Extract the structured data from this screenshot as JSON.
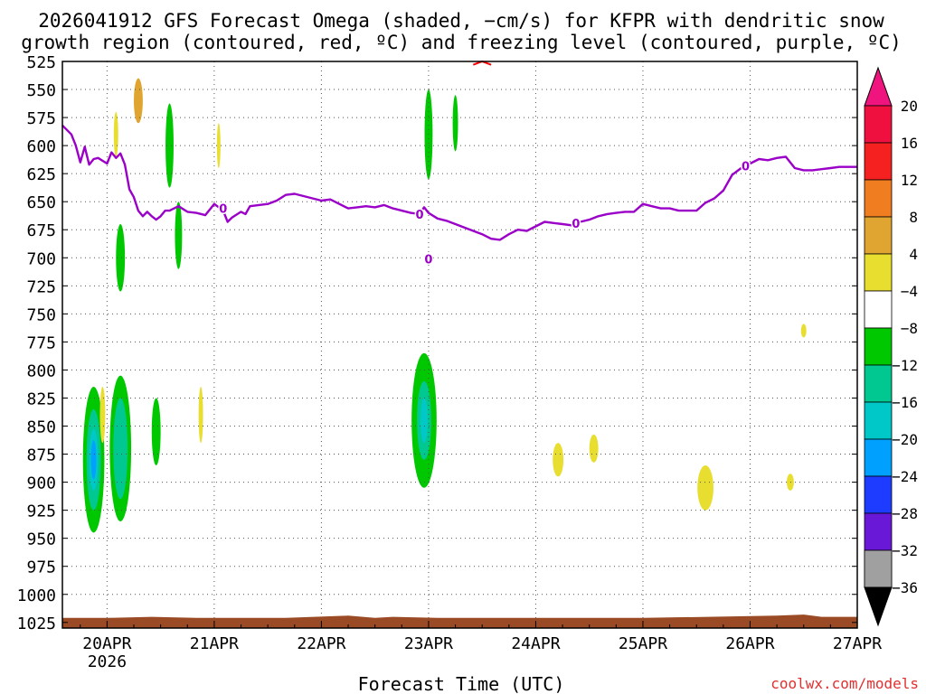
{
  "title_line1": "2026041912 GFS Forecast Omega (shaded, −cm/s) for KFPR with dendritic snow",
  "title_line2": "growth region (contoured, red, ºC) and freezing level (contoured, purple, ºC)",
  "xlabel": "Forecast Time (UTC)",
  "watermark": "coolwx.com/models",
  "chart_data": {
    "type": "heatmap",
    "x_ticks": [
      {
        "label": "20APR",
        "sub": "2026",
        "t": 0
      },
      {
        "label": "21APR",
        "sub": "",
        "t": 24
      },
      {
        "label": "22APR",
        "sub": "",
        "t": 48
      },
      {
        "label": "23APR",
        "sub": "",
        "t": 72
      },
      {
        "label": "24APR",
        "sub": "",
        "t": 96
      },
      {
        "label": "25APR",
        "sub": "",
        "t": 120
      },
      {
        "label": "26APR",
        "sub": "",
        "t": 144
      },
      {
        "label": "27APR",
        "sub": "",
        "t": 168
      }
    ],
    "xlim_hours_from_20APR00": [
      -10,
      168
    ],
    "y_levels_hPa": [
      525,
      550,
      575,
      600,
      625,
      650,
      675,
      700,
      725,
      750,
      775,
      800,
      825,
      850,
      875,
      900,
      925,
      950,
      975,
      1000,
      1025
    ],
    "ylim_hPa": [
      525,
      1030
    ],
    "grid": "dotted",
    "colorbar": {
      "labels": [
        "20",
        "16",
        "12",
        "8",
        "4",
        "−4",
        "−8",
        "−12",
        "−16",
        "−20",
        "−24",
        "−28",
        "−32",
        "−36"
      ],
      "colors": [
        "#f01040",
        "#f52020",
        "#f07e20",
        "#e0a530",
        "#e8de30",
        "#ffffff",
        "#00c800",
        "#00c890",
        "#00c8c8",
        "#00a0ff",
        "#1e3cff",
        "#6a18d8",
        "#a000c8",
        "#a0a0a0"
      ],
      "top_arrow_color": "#f0147e",
      "bottom_arrow_color": "#000000"
    },
    "freezing_level": {
      "color": "#9b00c8",
      "label": "0",
      "points": [
        [
          -10,
          582
        ],
        [
          -8,
          590
        ],
        [
          -7,
          600
        ],
        [
          -6,
          615
        ],
        [
          -5,
          601
        ],
        [
          -4,
          617
        ],
        [
          -3,
          612
        ],
        [
          -2,
          611
        ],
        [
          0,
          616
        ],
        [
          1,
          606
        ],
        [
          2,
          611
        ],
        [
          3,
          607
        ],
        [
          4,
          617
        ],
        [
          5,
          639
        ],
        [
          6,
          646
        ],
        [
          7,
          658
        ],
        [
          8,
          663
        ],
        [
          9,
          659
        ],
        [
          10,
          663
        ],
        [
          11,
          666
        ],
        [
          12,
          663
        ],
        [
          13,
          658
        ],
        [
          14,
          658
        ],
        [
          16,
          654
        ],
        [
          18,
          659
        ],
        [
          20,
          660
        ],
        [
          22,
          662
        ],
        [
          24,
          652
        ],
        [
          26,
          658
        ],
        [
          27,
          668
        ],
        [
          28,
          664
        ],
        [
          30,
          659
        ],
        [
          31,
          661
        ],
        [
          32,
          654
        ],
        [
          34,
          653
        ],
        [
          36,
          652
        ],
        [
          38,
          649
        ],
        [
          40,
          644
        ],
        [
          42,
          643
        ],
        [
          44,
          645
        ],
        [
          46,
          647
        ],
        [
          48,
          649
        ],
        [
          50,
          648
        ],
        [
          52,
          652
        ],
        [
          54,
          656
        ],
        [
          56,
          655
        ],
        [
          58,
          654
        ],
        [
          60,
          655
        ],
        [
          62,
          653
        ],
        [
          64,
          656
        ],
        [
          66,
          658
        ],
        [
          68,
          660
        ],
        [
          70,
          661
        ],
        [
          71,
          655
        ],
        [
          72,
          660
        ],
        [
          74,
          665
        ],
        [
          76,
          667
        ],
        [
          78,
          670
        ],
        [
          80,
          673
        ],
        [
          82,
          676
        ],
        [
          84,
          679
        ],
        [
          86,
          683
        ],
        [
          88,
          684
        ],
        [
          90,
          679
        ],
        [
          92,
          675
        ],
        [
          94,
          676
        ],
        [
          96,
          672
        ],
        [
          98,
          668
        ],
        [
          100,
          669
        ],
        [
          102,
          670
        ],
        [
          104,
          671
        ],
        [
          106,
          668
        ],
        [
          108,
          666
        ],
        [
          110,
          663
        ],
        [
          112,
          661
        ],
        [
          114,
          660
        ],
        [
          116,
          659
        ],
        [
          118,
          659
        ],
        [
          120,
          652
        ],
        [
          122,
          654
        ],
        [
          124,
          656
        ],
        [
          126,
          656
        ],
        [
          128,
          658
        ],
        [
          130,
          658
        ],
        [
          132,
          658
        ],
        [
          134,
          651
        ],
        [
          136,
          647
        ],
        [
          138,
          640
        ],
        [
          140,
          626
        ],
        [
          142,
          620
        ],
        [
          144,
          616
        ],
        [
          146,
          612
        ],
        [
          148,
          613
        ],
        [
          150,
          611
        ],
        [
          152,
          610
        ],
        [
          154,
          620
        ],
        [
          156,
          622
        ],
        [
          158,
          622
        ],
        [
          160,
          621
        ],
        [
          162,
          620
        ],
        [
          164,
          619
        ],
        [
          166,
          619
        ],
        [
          168,
          619
        ]
      ],
      "label_positions": [
        [
          26,
          656
        ],
        [
          70,
          661
        ],
        [
          105,
          669
        ],
        [
          143,
          618
        ],
        [
          72,
          701
        ]
      ]
    },
    "dgz_contour": {
      "color": "#ff0000",
      "points": [
        [
          82,
          528
        ],
        [
          84,
          525
        ],
        [
          86,
          528
        ]
      ]
    },
    "omega_regions": [
      {
        "level": "-8",
        "color": "#00c800",
        "t": -3,
        "pcen": 880,
        "hw": 2.4,
        "ph": 130
      },
      {
        "level": "-8",
        "color": "#00c800",
        "t": 3,
        "pcen": 870,
        "hw": 2.4,
        "ph": 130
      },
      {
        "level": "-12",
        "color": "#00c890",
        "t": -3,
        "pcen": 880,
        "hw": 1.6,
        "ph": 90
      },
      {
        "level": "-12",
        "color": "#00c890",
        "t": 3,
        "pcen": 870,
        "hw": 1.6,
        "ph": 90
      },
      {
        "level": "-16",
        "color": "#00c8c8",
        "t": -3,
        "pcen": 880,
        "hw": 1.0,
        "ph": 55
      },
      {
        "level": "-20",
        "color": "#00a0ff",
        "t": -3,
        "pcen": 880,
        "hw": 0.6,
        "ph": 35
      },
      {
        "level": "-8",
        "color": "#00c800",
        "t": 71,
        "pcen": 845,
        "hw": 2.8,
        "ph": 120
      },
      {
        "level": "-12",
        "color": "#00c890",
        "t": 71,
        "pcen": 845,
        "hw": 1.6,
        "ph": 70
      },
      {
        "level": "-16",
        "color": "#00c8c8",
        "t": 71,
        "pcen": 845,
        "hw": 0.8,
        "ph": 40
      },
      {
        "level": "-8",
        "color": "#00c800",
        "t": 3,
        "pcen": 700,
        "hw": 1.0,
        "ph": 60
      },
      {
        "level": "-8",
        "color": "#00c800",
        "t": 11,
        "pcen": 855,
        "hw": 1.0,
        "ph": 60
      },
      {
        "level": "-8",
        "color": "#00c800",
        "t": 14,
        "pcen": 600,
        "hw": 0.9,
        "ph": 75
      },
      {
        "level": "-8",
        "color": "#00c800",
        "t": 16,
        "pcen": 680,
        "hw": 0.8,
        "ph": 60
      },
      {
        "level": "-8",
        "color": "#00c800",
        "t": 72,
        "pcen": 590,
        "hw": 0.9,
        "ph": 80
      },
      {
        "level": "-8",
        "color": "#00c800",
        "t": 78,
        "pcen": 580,
        "hw": 0.6,
        "ph": 50
      },
      {
        "level": "4",
        "color": "#e8de30",
        "t": 101,
        "pcen": 880,
        "hw": 1.2,
        "ph": 30
      },
      {
        "level": "4",
        "color": "#e8de30",
        "t": 109,
        "pcen": 870,
        "hw": 1.0,
        "ph": 25
      },
      {
        "level": "4",
        "color": "#e8de30",
        "t": 134,
        "pcen": 905,
        "hw": 1.8,
        "ph": 40
      },
      {
        "level": "4",
        "color": "#e8de30",
        "t": 153,
        "pcen": 900,
        "hw": 0.8,
        "ph": 15
      },
      {
        "level": "4",
        "color": "#e8de30",
        "t": 156,
        "pcen": 765,
        "hw": 0.6,
        "ph": 12
      },
      {
        "level": "4",
        "color": "#e8de30",
        "t": -1,
        "pcen": 840,
        "hw": 0.6,
        "ph": 50
      },
      {
        "level": "4",
        "color": "#e8de30",
        "t": 2,
        "pcen": 590,
        "hw": 0.5,
        "ph": 40
      },
      {
        "level": "4",
        "color": "#e8de30",
        "t": 21,
        "pcen": 840,
        "hw": 0.5,
        "ph": 50
      },
      {
        "level": "4",
        "color": "#e8de30",
        "t": 25,
        "pcen": 600,
        "hw": 0.4,
        "ph": 40
      },
      {
        "level": "8",
        "color": "#e0a530",
        "t": 7,
        "pcen": 560,
        "hw": 1.0,
        "ph": 40
      }
    ],
    "surface_fill_color": "#9a4a24"
  }
}
